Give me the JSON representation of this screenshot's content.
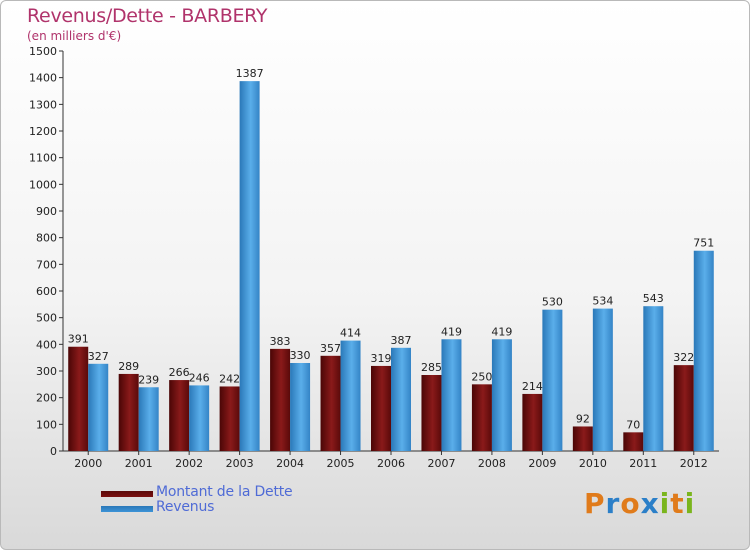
{
  "chart_data": {
    "type": "bar",
    "title": "Revenus/Dette - BARBERY",
    "subtitle": "(en milliers d'€)",
    "categories": [
      "2000",
      "2001",
      "2002",
      "2003",
      "2004",
      "2005",
      "2006",
      "2007",
      "2008",
      "2009",
      "2010",
      "2011",
      "2012"
    ],
    "series": [
      {
        "name": "Montant de la Dette",
        "color": "#7a0f0f",
        "values": [
          391,
          289,
          266,
          242,
          383,
          357,
          319,
          285,
          250,
          214,
          92,
          70,
          322
        ]
      },
      {
        "name": "Revenus",
        "color": "#3d93d6",
        "values": [
          327,
          239,
          246,
          1387,
          330,
          414,
          387,
          419,
          419,
          530,
          534,
          543,
          751
        ]
      }
    ],
    "ylim": [
      0,
      1500
    ],
    "ytick_step": 100,
    "grid": false,
    "legend_position": "bottom-left"
  },
  "legend": {
    "debt_label": "Montant de la Dette",
    "revenue_label": "Revenus"
  },
  "logo": {
    "letters": [
      "P",
      "r",
      "o",
      "x",
      "i",
      "t",
      "i"
    ],
    "colors": [
      "#e07b1b",
      "#2b7fc8",
      "#e07b1b",
      "#2b7fc8",
      "#7ab51d",
      "#e07b1b",
      "#7ab51d"
    ]
  }
}
